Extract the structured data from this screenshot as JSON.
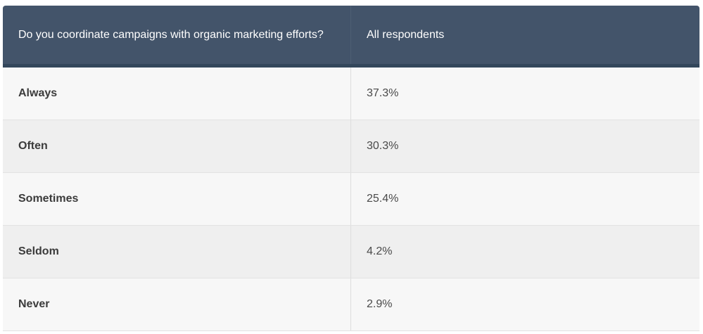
{
  "chart_data": {
    "type": "table",
    "columns": [
      "Do you coordinate campaigns with organic marketing efforts?",
      "All respondents"
    ],
    "rows": [
      {
        "answer": "Always",
        "value": "37.3%"
      },
      {
        "answer": "Often",
        "value": "30.3%"
      },
      {
        "answer": "Sometimes",
        "value": "25.4%"
      },
      {
        "answer": "Seldom",
        "value": "4.2%"
      },
      {
        "answer": "Never",
        "value": "2.9%"
      }
    ],
    "values": [
      37.3,
      30.3,
      25.4,
      4.2,
      2.9
    ]
  },
  "colors": {
    "header_bg": "#43546a",
    "header_text": "#ffffff",
    "row_odd": "#f7f7f7",
    "row_even": "#efefef"
  }
}
